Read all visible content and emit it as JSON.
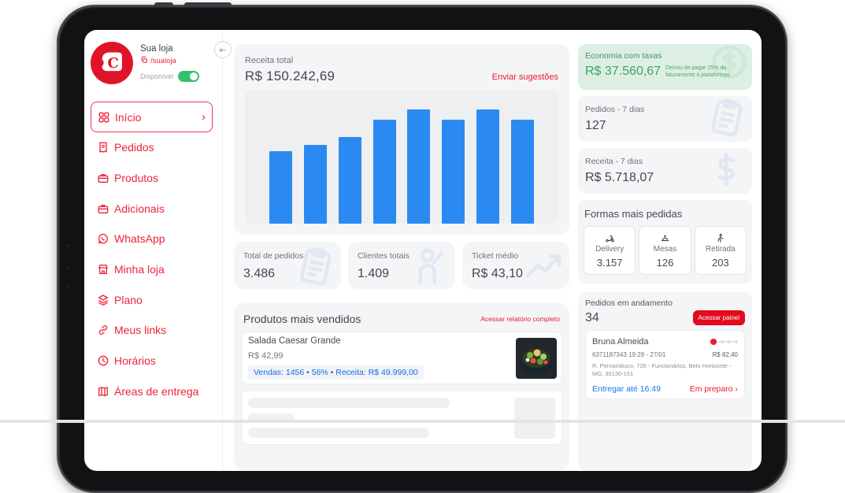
{
  "sidebar": {
    "store_name": "Sua loja",
    "store_handle": "/sualoja",
    "availability_label": "Disponível",
    "availability_on": true,
    "logo_letter": "C",
    "menu": [
      {
        "label": "Início",
        "icon": "grid",
        "active": true
      },
      {
        "label": "Pedidos",
        "icon": "receipt",
        "active": false
      },
      {
        "label": "Produtos",
        "icon": "box",
        "active": false
      },
      {
        "label": "Adicionais",
        "icon": "box",
        "active": false
      },
      {
        "label": "WhatsApp",
        "icon": "whatsapp",
        "active": false
      },
      {
        "label": "Minha loja",
        "icon": "storefront",
        "active": false
      },
      {
        "label": "Plano",
        "icon": "layers",
        "active": false
      },
      {
        "label": "Meus links",
        "icon": "link",
        "active": false
      },
      {
        "label": "Horários",
        "icon": "clock",
        "active": false
      },
      {
        "label": "Áreas de entrega",
        "icon": "map",
        "active": false
      }
    ]
  },
  "main": {
    "revenue": {
      "label": "Receita total",
      "value": "R$ 150.242,69",
      "action": "Enviar sugestões"
    },
    "stats": [
      {
        "label": "Total de pedidos",
        "value": "3.486",
        "icon": "clipboard"
      },
      {
        "label": "Clientes totais",
        "value": "1.409",
        "icon": "person"
      },
      {
        "label": "Ticket médio",
        "value": "R$ 43,10",
        "icon": "trend"
      }
    ],
    "top_products": {
      "title": "Produtos mais vendidos",
      "action": "Acessar relatório completo",
      "items": [
        {
          "name": "Salada Caesar Grande",
          "price": "R$ 42,99",
          "badge": "Vendas: 1456 • 56% • Receita: R$ 49.999,00"
        }
      ]
    }
  },
  "chart_data": {
    "type": "bar",
    "title": "Receita total",
    "total_label": "R$ 150.242,69",
    "bar_count": 8,
    "values_relative_pct": [
      63,
      69,
      76,
      91,
      100,
      91,
      100,
      91
    ],
    "bar_color": "#2b8af2",
    "axes_labeled": false,
    "grid": false,
    "legend": false
  },
  "right": {
    "savings": {
      "title": "Economia com taxas",
      "value": "R$ 37.560,67",
      "note": "Deixou de pagar 25% do faturamento à plataformas."
    },
    "orders7": {
      "label": "Pedidos - 7 dias",
      "value": "127",
      "icon": "clipboard"
    },
    "revenue7": {
      "label": "Receita - 7 dias",
      "value": "R$ 5.718,07",
      "icon": "dollar"
    },
    "order_types": {
      "title": "Formas mais pedidas",
      "items": [
        {
          "label": "Delivery",
          "value": "3.157",
          "icon": "scooter"
        },
        {
          "label": "Mesas",
          "value": "126",
          "icon": "bell"
        },
        {
          "label": "Retirada",
          "value": "203",
          "icon": "walk"
        }
      ]
    },
    "ongoing": {
      "title": "Pedidos em andamento",
      "count": "34",
      "action": "Acessar  painel",
      "order": {
        "customer": "Bruna Almeida",
        "order_meta": "6371187343  19:29 - 27/01",
        "total": "R$ 82,40",
        "address": "R. Pernambuco, 726 - Funcionários, Belo Horizonte - MG, 30130-151",
        "deliver_by": "Entregar até 16:49",
        "status": "Em preparo"
      }
    }
  },
  "colors": {
    "accent_red": "#ee2438",
    "button_red": "#e30b1d",
    "bar_blue": "#2b8af2",
    "link_blue": "#1a73e8",
    "savings_green": "#3fa465",
    "toggle_green": "#35c06a",
    "card_gray": "#f4f5f7"
  }
}
